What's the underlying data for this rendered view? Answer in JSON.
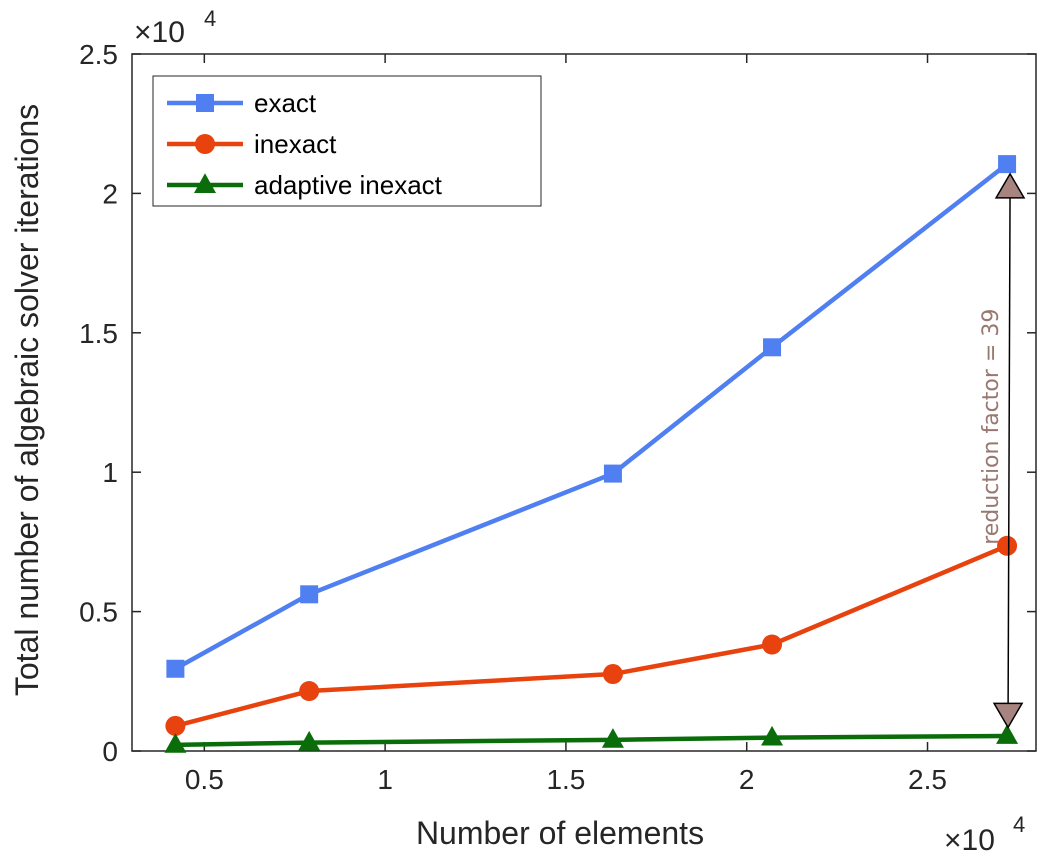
{
  "chart_data": {
    "type": "line",
    "xlabel": "Number of elements",
    "ylabel": "Total number of algebraic solver iterations",
    "x_multiplier": "×10",
    "x_multiplier_exp": "4",
    "y_multiplier": "×10",
    "y_multiplier_exp": "4",
    "xlim": [
      0.3,
      2.8
    ],
    "ylim": [
      0,
      2.5
    ],
    "xticks": [
      0.5,
      1,
      1.5,
      2,
      2.5
    ],
    "xtick_labels": [
      "0.5",
      "1",
      "1.5",
      "2",
      "2.5"
    ],
    "yticks": [
      0,
      0.5,
      1,
      1.5,
      2,
      2.5
    ],
    "ytick_labels": [
      "0",
      "0.5",
      "1",
      "1.5",
      "2",
      "2.5"
    ],
    "grid": false,
    "legend_position": "top-left",
    "x": [
      0.42,
      0.79,
      1.63,
      2.07,
      2.72
    ],
    "series": [
      {
        "name": "exact",
        "color": "#4f7ff0",
        "marker": "square",
        "values": [
          0.295,
          0.562,
          0.995,
          1.448,
          2.105
        ]
      },
      {
        "name": "inexact",
        "color": "#e8420e",
        "marker": "circle",
        "values": [
          0.09,
          0.215,
          0.276,
          0.382,
          0.736
        ]
      },
      {
        "name": "adaptive inexact",
        "color": "#0a6d0a",
        "marker": "triangle",
        "values": [
          0.022,
          0.03,
          0.04,
          0.048,
          0.054
        ]
      }
    ],
    "annotation": {
      "text": "reduction factor = 39",
      "color": "#9a7870",
      "marker_color": "#a78480",
      "x_top": 2.72,
      "y_top": 2.02,
      "x_bottom": 2.72,
      "y_bottom": 0.135
    }
  }
}
